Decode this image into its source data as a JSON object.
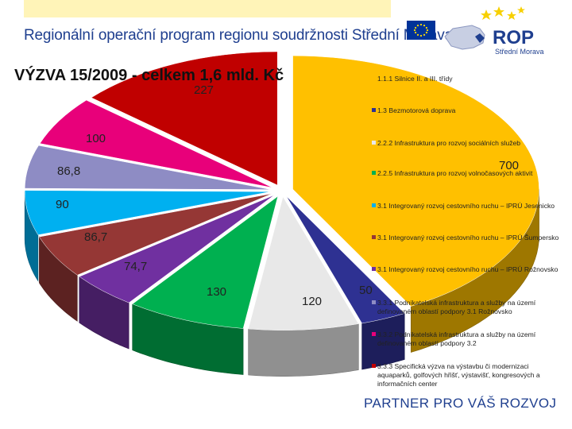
{
  "header": {
    "title": "Regionální operační program regionu soudržnosti Střední Morava",
    "logo_text": "ROP",
    "logo_sub": "Střední Morava"
  },
  "chart_data": {
    "type": "pie",
    "title": "VÝZVA 15/2009 - celkem 1,6 mld. Kč",
    "series": [
      {
        "name": "1.1.1 Silnice II. a III. třídy",
        "label": "700",
        "value": 700,
        "color": "#ffc000"
      },
      {
        "name": "1.3 Bezmotorová doprava",
        "label": "50",
        "value": 50,
        "color": "#2e3192"
      },
      {
        "name": "2.2.2 Infrastruktura pro rozvoj sociálních služeb",
        "label": "120",
        "value": 120,
        "color": "#e8e8e8"
      },
      {
        "name": "2.2.5 Infrastruktura pro rozvoj volnočasových aktivit",
        "label": "130",
        "value": 130,
        "color": "#00b050"
      },
      {
        "name": "3.1 Integrovaný rozvoj cestovního ruchu – IPRÚ Rožnovsko",
        "label": "74,7",
        "value": 74.7,
        "color": "#7030a0"
      },
      {
        "name": "3.1 Integrovaný rozvoj cestovního ruchu – IPRÚ Šumpersko",
        "label": "86,7",
        "value": 86.7,
        "color": "#953735"
      },
      {
        "name": "3.1 Integrovaný rozvoj cestovního ruchu – IPRÚ Jesenicko",
        "label": "90",
        "value": 90,
        "color": "#00b0f0"
      },
      {
        "name": "3.3.1 Podnikatelská infrastruktura a služby na území definovaném oblastí podpory 3.1 Rožnovsko",
        "label": "86,8",
        "value": 86.8,
        "color": "#8e8cc4"
      },
      {
        "name": "3.3.2 Podnikatelská infrastruktura a služby na území definovaném oblastí podpory 3.2",
        "label": "100",
        "value": 100,
        "color": "#e8007a"
      },
      {
        "name": "3.3.3 Specifická výzva na výstavbu či modernizaci aquaparků, golfových hřišť, výstavišť, kongresových a informačních center",
        "label": "227",
        "value": 227,
        "color": "#c00000"
      }
    ],
    "legend_order": [
      0,
      1,
      2,
      3,
      6,
      5,
      4,
      7,
      8,
      9
    ],
    "legend_placement": "right",
    "view": "3d-exploded"
  },
  "footer": {
    "slogan": "PARTNER PRO VÁŠ ROZVOJ"
  },
  "colors": {
    "brand_blue": "#1f3f8f",
    "eu_blue": "#003399",
    "eu_star": "#ffdd00",
    "logo_star": "#f7d000",
    "band": "#fff4b8"
  }
}
